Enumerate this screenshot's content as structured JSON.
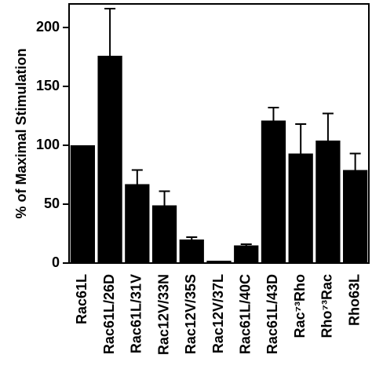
{
  "chart_data": {
    "type": "bar",
    "y_label": "% of Maximal Stimulation",
    "categories": [
      "Rac61L",
      "Rac61L/26D",
      "Rac61L/31V",
      "Rac12V/33N",
      "Rac12V/35S",
      "Rac12V/37L",
      "Rac61L/40C",
      "Rac61L/43D",
      "Rac⁷³Rho",
      "Rho⁷³Rac",
      "Rho63L"
    ],
    "values": [
      100,
      176,
      67,
      49,
      20,
      2,
      15,
      121,
      93,
      104,
      79
    ],
    "errors": [
      0,
      40,
      12,
      12,
      2,
      0,
      1,
      11,
      25,
      23,
      14
    ],
    "color": "#000000",
    "ylim": [
      0,
      220
    ],
    "yticks": [
      0,
      50,
      100,
      150,
      200
    ],
    "grid": false
  }
}
